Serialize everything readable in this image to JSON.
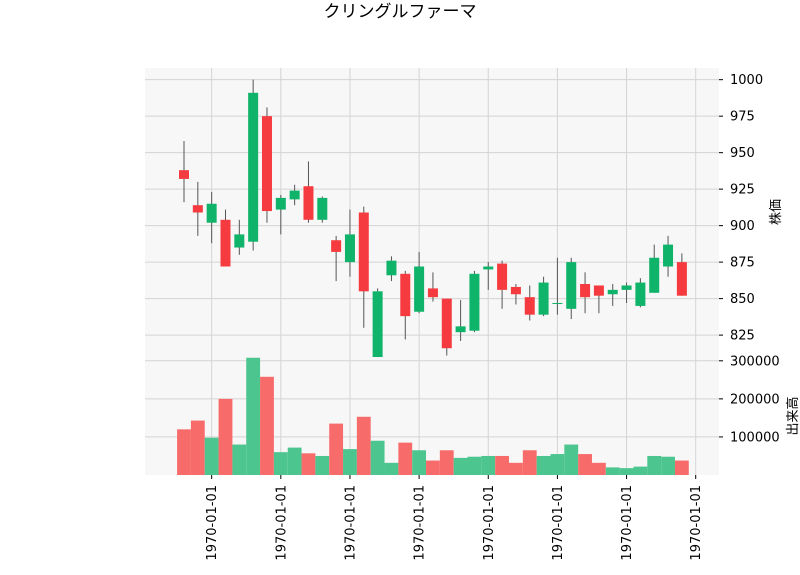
{
  "chart_data": {
    "type": "candlestick",
    "title": "クリングルファーマ",
    "price_ylabel": "株価",
    "volume_ylabel": "出来高",
    "colors": {
      "up": "#0fb36a",
      "down": "#f53b3f",
      "up_volume": "#4cc58f",
      "down_volume": "#f86b6b"
    },
    "price_yticks": [
      1000,
      975,
      950,
      925,
      900,
      875,
      850,
      825
    ],
    "price_ylim": [
      810,
      1008
    ],
    "volume_yticks": [
      100000,
      200000,
      300000
    ],
    "volume_ylim": [
      0,
      310000
    ],
    "xtick_labels": [
      "1970-01-01",
      "1970-01-01",
      "1970-01-01",
      "1970-01-01",
      "1970-01-01",
      "1970-01-01",
      "1970-01-01",
      "1970-01-01"
    ],
    "xtick_positions": [
      2,
      7,
      12,
      17,
      22,
      27,
      32,
      37
    ],
    "candles": [
      {
        "o": 938,
        "h": 958,
        "l": 916,
        "c": 932,
        "v": 120000
      },
      {
        "o": 914,
        "h": 930,
        "l": 893,
        "c": 909,
        "v": 143000
      },
      {
        "o": 902,
        "h": 923,
        "l": 888,
        "c": 915,
        "v": 98000
      },
      {
        "o": 904,
        "h": 911,
        "l": 872,
        "c": 872,
        "v": 200000
      },
      {
        "o": 885,
        "h": 904,
        "l": 880,
        "c": 894,
        "v": 80000
      },
      {
        "o": 889,
        "h": 1000,
        "l": 883,
        "c": 991,
        "v": 308000
      },
      {
        "o": 975,
        "h": 981,
        "l": 902,
        "c": 910,
        "v": 258000
      },
      {
        "o": 911,
        "h": 921,
        "l": 894,
        "c": 919,
        "v": 60000
      },
      {
        "o": 918,
        "h": 928,
        "l": 914,
        "c": 924,
        "v": 72000
      },
      {
        "o": 927,
        "h": 944,
        "l": 902,
        "c": 904,
        "v": 57000
      },
      {
        "o": 904,
        "h": 920,
        "l": 902,
        "c": 919,
        "v": 50000
      },
      {
        "o": 890,
        "h": 893,
        "l": 862,
        "c": 882,
        "v": 135000
      },
      {
        "o": 875,
        "h": 911,
        "l": 865,
        "c": 894,
        "v": 68000
      },
      {
        "o": 909,
        "h": 913,
        "l": 830,
        "c": 855,
        "v": 153000
      },
      {
        "o": 810,
        "h": 857,
        "l": 810,
        "c": 855,
        "v": 90000
      },
      {
        "o": 866,
        "h": 879,
        "l": 862,
        "c": 876,
        "v": 32000
      },
      {
        "o": 867,
        "h": 869,
        "l": 822,
        "c": 838,
        "v": 85000
      },
      {
        "o": 841,
        "h": 882,
        "l": 840,
        "c": 872,
        "v": 65000
      },
      {
        "o": 857,
        "h": 868,
        "l": 848,
        "c": 851,
        "v": 38000
      },
      {
        "o": 850,
        "h": 850,
        "l": 811,
        "c": 816,
        "v": 65000
      },
      {
        "o": 827,
        "h": 849,
        "l": 821,
        "c": 831,
        "v": 45000
      },
      {
        "o": 828,
        "h": 869,
        "l": 827,
        "c": 867,
        "v": 48000
      },
      {
        "o": 870,
        "h": 875,
        "l": 856,
        "c": 872,
        "v": 50000
      },
      {
        "o": 874,
        "h": 876,
        "l": 843,
        "c": 856,
        "v": 50000
      },
      {
        "o": 858,
        "h": 860,
        "l": 846,
        "c": 853,
        "v": 32000
      },
      {
        "o": 851,
        "h": 859,
        "l": 835,
        "c": 839,
        "v": 65000
      },
      {
        "o": 839,
        "h": 865,
        "l": 838,
        "c": 861,
        "v": 50000
      },
      {
        "o": 847,
        "h": 878,
        "l": 839,
        "c": 847,
        "v": 55000
      },
      {
        "o": 843,
        "h": 878,
        "l": 836,
        "c": 875,
        "v": 80000
      },
      {
        "o": 860,
        "h": 868,
        "l": 840,
        "c": 851,
        "v": 55000
      },
      {
        "o": 859,
        "h": 859,
        "l": 840,
        "c": 852,
        "v": 32000
      },
      {
        "o": 853,
        "h": 860,
        "l": 845,
        "c": 856,
        "v": 20000
      },
      {
        "o": 856,
        "h": 861,
        "l": 847,
        "c": 859,
        "v": 18000
      },
      {
        "o": 845,
        "h": 864,
        "l": 844,
        "c": 861,
        "v": 22000
      },
      {
        "o": 854,
        "h": 887,
        "l": 854,
        "c": 878,
        "v": 50000
      },
      {
        "o": 872,
        "h": 893,
        "l": 865,
        "c": 887,
        "v": 48000
      },
      {
        "o": 875,
        "h": 881,
        "l": 852,
        "c": 852,
        "v": 38000
      }
    ]
  }
}
